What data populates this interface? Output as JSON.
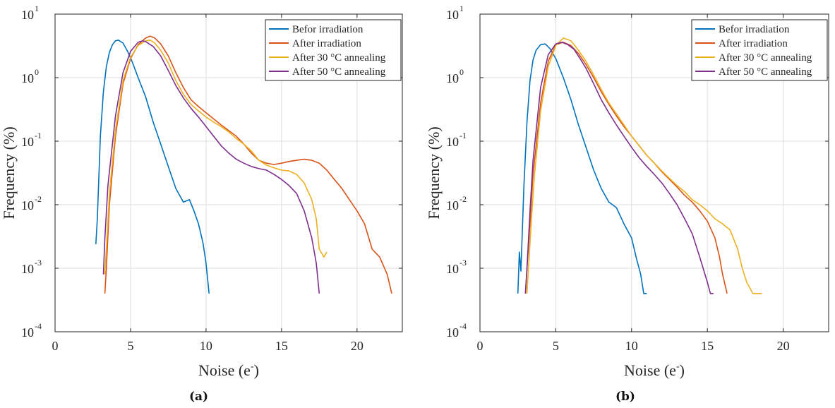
{
  "chart_data": [
    {
      "type": "line",
      "panel_label": "(a)",
      "title": "",
      "xlabel": "Noise (e",
      "xlabel_superscript": "-",
      "xlabel_suffix": ")",
      "ylabel": "Frequency (%)",
      "xlim": [
        0,
        23
      ],
      "ylim": [
        0.0001,
        10
      ],
      "yscale": "log",
      "grid": true,
      "legend_position": "top-right",
      "xticks": [
        0,
        5,
        10,
        15,
        20
      ],
      "xtick_labels": [
        "0",
        "5",
        "10",
        "15",
        "20"
      ],
      "yticks": [
        -4,
        -3,
        -2,
        -1,
        0,
        1
      ],
      "ytick_base": "10",
      "ytick_exponents": [
        "-4",
        "-3",
        "-2",
        "-1",
        "0",
        "1"
      ],
      "series": [
        {
          "name": "Befor irradiation",
          "color": "#0072BD",
          "x": [
            2.7,
            2.8,
            3.0,
            3.2,
            3.4,
            3.6,
            3.8,
            4.0,
            4.2,
            4.5,
            4.8,
            5.1,
            5.5,
            6.0,
            6.5,
            7.0,
            7.5,
            8.0,
            8.5,
            8.9,
            9.2,
            9.5,
            9.8,
            10.0,
            10.2
          ],
          "y": [
            0.0024,
            0.006,
            0.12,
            0.6,
            1.5,
            2.5,
            3.3,
            3.8,
            3.9,
            3.5,
            2.6,
            1.8,
            1.0,
            0.5,
            0.2,
            0.09,
            0.04,
            0.018,
            0.011,
            0.012,
            0.008,
            0.005,
            0.0025,
            0.0012,
            0.0004
          ]
        },
        {
          "name": "After irradiation",
          "color": "#D95319",
          "x": [
            3.3,
            3.4,
            3.6,
            4.0,
            4.5,
            5.0,
            5.5,
            6.0,
            6.3,
            6.6,
            7.0,
            7.5,
            8.0,
            8.5,
            9.0,
            9.5,
            10.0,
            11.0,
            12.0,
            12.5,
            13.0,
            13.5,
            14.0,
            14.5,
            15.0,
            15.5,
            16.0,
            16.5,
            17.0,
            17.5,
            18.0,
            18.5,
            19.0,
            19.5,
            20.0,
            20.5,
            21.0,
            21.5,
            22.0,
            22.3
          ],
          "y": [
            0.0004,
            0.001,
            0.01,
            0.12,
            0.8,
            2.0,
            3.3,
            4.2,
            4.5,
            4.2,
            3.4,
            2.2,
            1.2,
            0.7,
            0.45,
            0.35,
            0.28,
            0.18,
            0.12,
            0.09,
            0.065,
            0.05,
            0.045,
            0.043,
            0.045,
            0.048,
            0.05,
            0.052,
            0.05,
            0.045,
            0.035,
            0.025,
            0.018,
            0.012,
            0.008,
            0.005,
            0.002,
            0.0015,
            0.0008,
            0.0004
          ]
        },
        {
          "name": "After 30 °C annealing",
          "color": "#EDB120",
          "x": [
            3.3,
            3.4,
            3.6,
            4.0,
            4.5,
            5.0,
            5.5,
            6.0,
            6.3,
            6.6,
            7.0,
            7.5,
            8.0,
            8.5,
            9.0,
            9.5,
            10.0,
            10.5,
            11.0,
            11.5,
            12.0,
            12.5,
            13.0,
            13.5,
            14.0,
            14.5,
            15.0,
            15.5,
            16.0,
            16.5,
            17.0,
            17.3,
            17.5,
            17.8,
            18.0
          ],
          "y": [
            0.0008,
            0.002,
            0.015,
            0.15,
            0.9,
            2.1,
            3.2,
            3.8,
            3.9,
            3.5,
            2.7,
            1.7,
            0.9,
            0.55,
            0.38,
            0.3,
            0.24,
            0.2,
            0.17,
            0.14,
            0.11,
            0.09,
            0.07,
            0.05,
            0.042,
            0.038,
            0.035,
            0.034,
            0.03,
            0.022,
            0.012,
            0.006,
            0.002,
            0.0015,
            0.0018
          ]
        },
        {
          "name": "After 50 °C annealing",
          "color": "#7E2F8E",
          "x": [
            3.2,
            3.3,
            3.5,
            4.0,
            4.5,
            5.0,
            5.5,
            5.8,
            6.0,
            6.5,
            7.0,
            7.5,
            8.0,
            8.5,
            9.0,
            9.5,
            10.0,
            10.5,
            11.0,
            11.5,
            12.0,
            12.5,
            13.0,
            13.5,
            14.0,
            14.5,
            15.0,
            15.5,
            16.0,
            16.5,
            17.0,
            17.3,
            17.5
          ],
          "y": [
            0.0008,
            0.003,
            0.02,
            0.25,
            1.2,
            2.6,
            3.6,
            3.8,
            3.7,
            3.1,
            2.2,
            1.3,
            0.75,
            0.48,
            0.33,
            0.24,
            0.17,
            0.12,
            0.085,
            0.065,
            0.052,
            0.045,
            0.04,
            0.037,
            0.035,
            0.03,
            0.025,
            0.02,
            0.015,
            0.008,
            0.003,
            0.0012,
            0.0004
          ]
        }
      ]
    },
    {
      "type": "line",
      "panel_label": "(b)",
      "title": "",
      "xlabel": "Noise (e",
      "xlabel_superscript": "-",
      "xlabel_suffix": ")",
      "ylabel": "Frequency (%)",
      "xlim": [
        0,
        23
      ],
      "ylim": [
        0.0001,
        10
      ],
      "yscale": "log",
      "grid": true,
      "legend_position": "top-right",
      "xticks": [
        0,
        5,
        10,
        15,
        20
      ],
      "xtick_labels": [
        "0",
        "5",
        "10",
        "15",
        "20"
      ],
      "yticks": [
        -4,
        -3,
        -2,
        -1,
        0,
        1
      ],
      "ytick_base": "10",
      "ytick_exponents": [
        "-4",
        "-3",
        "-2",
        "-1",
        "0",
        "1"
      ],
      "series": [
        {
          "name": "Befor irradiation",
          "color": "#0072BD",
          "x": [
            2.5,
            2.6,
            2.7,
            2.9,
            3.1,
            3.3,
            3.5,
            3.7,
            4.0,
            4.3,
            4.6,
            5.0,
            5.5,
            6.0,
            6.5,
            7.0,
            7.5,
            8.0,
            8.5,
            9.0,
            9.5,
            10.0,
            10.3,
            10.6,
            10.8,
            11.0
          ],
          "y": [
            0.0004,
            0.0018,
            0.0009,
            0.02,
            0.2,
            0.9,
            1.9,
            2.7,
            3.3,
            3.4,
            2.9,
            2.0,
            1.0,
            0.45,
            0.18,
            0.08,
            0.035,
            0.018,
            0.011,
            0.009,
            0.005,
            0.003,
            0.0015,
            0.0008,
            0.0004,
            0.0004
          ]
        },
        {
          "name": "After irradiation",
          "color": "#D95319",
          "x": [
            3.0,
            3.1,
            3.3,
            3.5,
            4.0,
            4.5,
            5.0,
            5.5,
            6.0,
            6.5,
            7.0,
            7.5,
            8.0,
            8.5,
            9.0,
            9.5,
            10.0,
            10.5,
            11.0,
            11.5,
            12.0,
            12.5,
            13.0,
            13.5,
            14.0,
            14.5,
            15.0,
            15.5,
            15.8,
            16.0,
            16.3
          ],
          "y": [
            0.0004,
            0.001,
            0.005,
            0.03,
            0.4,
            1.8,
            3.3,
            3.6,
            3.2,
            2.4,
            1.6,
            1.0,
            0.6,
            0.38,
            0.25,
            0.17,
            0.12,
            0.085,
            0.06,
            0.045,
            0.033,
            0.025,
            0.019,
            0.014,
            0.011,
            0.008,
            0.0055,
            0.003,
            0.0015,
            0.0008,
            0.0004
          ]
        },
        {
          "name": "After 30 °C annealing",
          "color": "#EDB120",
          "x": [
            3.1,
            3.2,
            3.4,
            3.6,
            4.0,
            4.5,
            5.0,
            5.5,
            6.0,
            6.5,
            7.0,
            7.5,
            8.0,
            8.5,
            9.0,
            9.5,
            10.0,
            10.5,
            11.0,
            11.5,
            12.0,
            12.5,
            13.0,
            13.5,
            14.0,
            14.5,
            15.0,
            15.5,
            16.0,
            16.5,
            17.0,
            17.3,
            17.6,
            18.0,
            18.6
          ],
          "y": [
            0.0004,
            0.001,
            0.006,
            0.03,
            0.3,
            1.5,
            3.2,
            4.2,
            3.8,
            2.7,
            1.8,
            1.1,
            0.65,
            0.4,
            0.27,
            0.18,
            0.12,
            0.085,
            0.06,
            0.045,
            0.034,
            0.026,
            0.02,
            0.016,
            0.012,
            0.01,
            0.008,
            0.006,
            0.005,
            0.004,
            0.002,
            0.001,
            0.0006,
            0.0004,
            0.0004
          ]
        },
        {
          "name": "After 50 °C annealing",
          "color": "#7E2F8E",
          "x": [
            3.0,
            3.1,
            3.3,
            3.5,
            4.0,
            4.5,
            5.0,
            5.4,
            5.8,
            6.2,
            6.6,
            7.0,
            7.5,
            8.0,
            8.5,
            9.0,
            9.5,
            10.0,
            10.5,
            11.0,
            11.5,
            12.0,
            12.5,
            13.0,
            13.5,
            14.0,
            14.5,
            15.0,
            15.2,
            15.4
          ],
          "y": [
            0.0004,
            0.001,
            0.008,
            0.05,
            0.7,
            2.3,
            3.4,
            3.6,
            3.3,
            2.8,
            2.0,
            1.4,
            0.8,
            0.45,
            0.28,
            0.18,
            0.12,
            0.08,
            0.055,
            0.04,
            0.03,
            0.022,
            0.015,
            0.01,
            0.006,
            0.0035,
            0.0015,
            0.0006,
            0.0004,
            0.0004
          ]
        }
      ]
    }
  ]
}
